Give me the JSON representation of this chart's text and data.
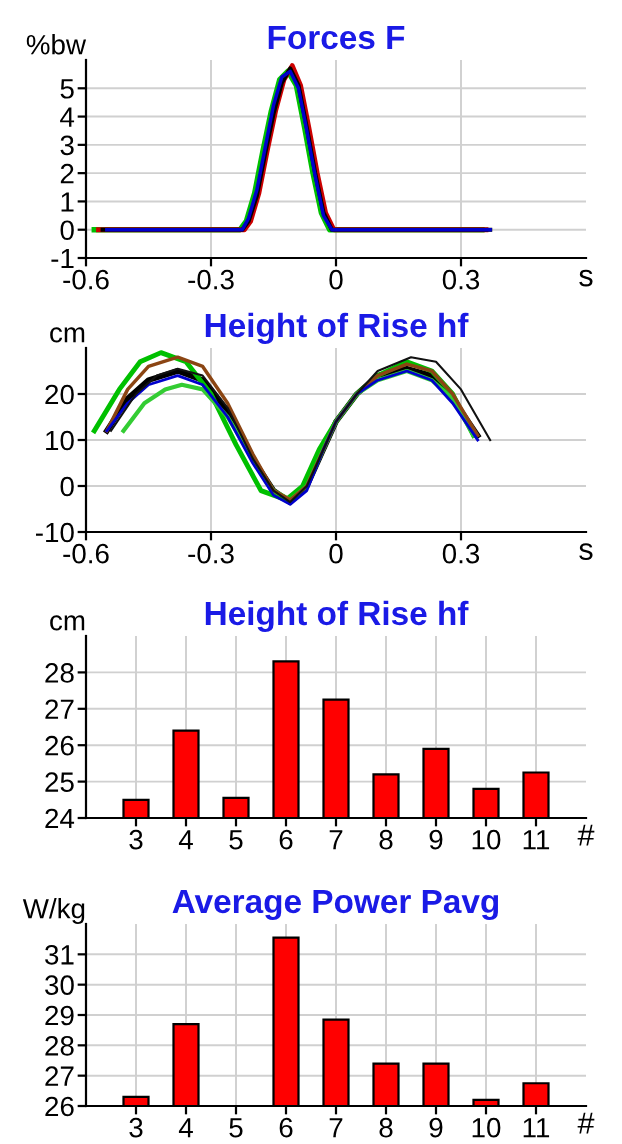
{
  "chart_data": [
    {
      "type": "line",
      "title": "Forces F",
      "ylabel": "%bw",
      "xlabel": "s",
      "xlim": [
        -0.6,
        0.6
      ],
      "xticks": [
        -0.6,
        -0.3,
        0,
        0.3
      ],
      "ylim": [
        -1,
        6
      ],
      "yticks": [
        -1,
        0,
        1,
        2,
        3,
        4,
        5
      ],
      "grid": true,
      "marker": "none",
      "line_style": "solid",
      "series": [
        {
          "color": "#00c000",
          "x": [
            -0.58,
            -0.3,
            -0.23,
            -0.215,
            -0.195,
            -0.175,
            -0.155,
            -0.135,
            -0.115,
            -0.095,
            -0.075,
            -0.055,
            -0.035,
            -0.015,
            0.1,
            0.35
          ],
          "values": [
            0,
            0,
            0,
            0.3,
            1.3,
            2.8,
            4.2,
            5.3,
            5.6,
            5.1,
            3.6,
            2.0,
            0.6,
            0,
            0,
            0
          ]
        },
        {
          "color": "#cc0000",
          "x": [
            -0.57,
            -0.3,
            -0.22,
            -0.205,
            -0.185,
            -0.165,
            -0.145,
            -0.125,
            -0.105,
            -0.085,
            -0.065,
            -0.045,
            -0.025,
            -0.005,
            0.1,
            0.36
          ],
          "values": [
            0,
            0,
            0,
            0.3,
            1.3,
            2.8,
            4.2,
            5.3,
            5.8,
            5.1,
            3.6,
            2.0,
            0.6,
            0,
            0,
            0
          ]
        },
        {
          "color": "#000000",
          "x": [
            -0.56,
            -0.3,
            -0.225,
            -0.21,
            -0.19,
            -0.17,
            -0.15,
            -0.13,
            -0.11,
            -0.09,
            -0.07,
            -0.05,
            -0.03,
            -0.01,
            0.1,
            0.37
          ],
          "values": [
            0,
            0,
            0,
            0.3,
            1.2,
            2.7,
            4.1,
            5.2,
            5.7,
            5.1,
            3.6,
            2.0,
            0.6,
            0,
            0,
            0
          ]
        },
        {
          "color": "#0000cc",
          "x": [
            -0.55,
            -0.3,
            -0.225,
            -0.21,
            -0.19,
            -0.17,
            -0.15,
            -0.13,
            -0.11,
            -0.09,
            -0.07,
            -0.05,
            -0.03,
            -0.01,
            0.1,
            0.37
          ],
          "values": [
            0,
            0,
            0,
            0.4,
            1.4,
            2.9,
            4.4,
            5.4,
            5.6,
            5.0,
            3.5,
            1.9,
            0.5,
            0,
            0,
            0
          ]
        }
      ]
    },
    {
      "type": "line",
      "title": "Height of Rise hf",
      "ylabel": "cm",
      "xlabel": "s",
      "xlim": [
        -0.6,
        0.6
      ],
      "xticks": [
        -0.6,
        -0.3,
        0,
        0.3
      ],
      "ylim": [
        -10,
        30
      ],
      "yticks": [
        -10,
        0,
        10,
        20
      ],
      "grid": true,
      "marker": "none",
      "line_style": "solid",
      "series": [
        {
          "color": "#000000",
          "x": [
            -0.55,
            -0.5,
            -0.45,
            -0.38,
            -0.32,
            -0.26,
            -0.2,
            -0.15,
            -0.11,
            -0.07,
            -0.03,
            0,
            0.05,
            0.1,
            0.17,
            0.23,
            0.28,
            0.34
          ],
          "values": [
            12,
            19,
            23,
            25,
            23,
            16,
            6,
            -1,
            -3.5,
            0,
            8,
            14,
            20,
            24,
            25.5,
            24,
            19,
            11
          ]
        },
        {
          "color": "#00c000",
          "x": [
            -0.58,
            -0.52,
            -0.47,
            -0.42,
            -0.36,
            -0.3,
            -0.24,
            -0.18,
            -0.12,
            -0.08,
            -0.04,
            0,
            0.05,
            0.1,
            0.17,
            0.23,
            0.28,
            0.33
          ],
          "values": [
            12,
            21,
            27,
            29,
            27,
            20,
            9,
            -1,
            -3,
            0,
            8,
            14,
            20,
            24,
            27,
            25,
            20,
            11
          ]
        },
        {
          "color": "#33cc33",
          "x": [
            -0.51,
            -0.46,
            -0.41,
            -0.37,
            -0.32,
            -0.26,
            -0.2,
            -0.15,
            -0.11,
            -0.07,
            -0.03,
            0,
            0.05,
            0.1,
            0.17,
            0.23,
            0.28,
            0.33
          ],
          "values": [
            12,
            18,
            21,
            22,
            21,
            15,
            6,
            -1,
            -3,
            0,
            8,
            14,
            20,
            23,
            25,
            23,
            19,
            11
          ]
        },
        {
          "color": "#8b4513",
          "x": [
            -0.55,
            -0.5,
            -0.45,
            -0.38,
            -0.32,
            -0.26,
            -0.2,
            -0.15,
            -0.11,
            -0.07,
            -0.03,
            0,
            0.05,
            0.1,
            0.17,
            0.23,
            0.28,
            0.34
          ],
          "values": [
            12,
            21,
            26,
            28,
            26,
            18,
            7,
            -1,
            -3,
            0,
            8,
            14,
            20,
            24,
            26.5,
            25,
            20,
            11
          ]
        },
        {
          "color": "#0000cc",
          "x": [
            -0.55,
            -0.5,
            -0.45,
            -0.38,
            -0.32,
            -0.26,
            -0.2,
            -0.15,
            -0.11,
            -0.07,
            -0.03,
            0,
            0.05,
            0.1,
            0.17,
            0.23,
            0.28,
            0.34
          ],
          "values": [
            12,
            18,
            22,
            24,
            22,
            15,
            5,
            -2,
            -4,
            -1,
            8,
            14,
            20,
            23,
            25,
            23,
            18,
            10
          ]
        },
        {
          "color": "#111111",
          "x": [
            -0.54,
            -0.48,
            -0.43,
            -0.38,
            -0.32,
            -0.26,
            -0.2,
            -0.15,
            -0.11,
            -0.07,
            -0.03,
            0,
            0.05,
            0.1,
            0.18,
            0.24,
            0.3,
            0.37
          ],
          "values": [
            12,
            20,
            24,
            25.5,
            24,
            17,
            6,
            -1,
            -3.5,
            0,
            8,
            14,
            20,
            25,
            28,
            27,
            21,
            10
          ]
        }
      ]
    },
    {
      "type": "bar",
      "title": "Height of Rise hf",
      "ylabel": "cm",
      "xlabel": "#",
      "x": [
        3,
        4,
        5,
        6,
        7,
        8,
        9,
        10,
        11
      ],
      "values": [
        24.5,
        26.4,
        24.55,
        28.3,
        27.25,
        25.2,
        25.9,
        24.8,
        25.25
      ],
      "color": "#ff0000",
      "xlim": [
        2,
        12
      ],
      "xticks": [
        3,
        4,
        5,
        6,
        7,
        8,
        9,
        10,
        11
      ],
      "ylim": [
        24,
        29
      ],
      "yticks": [
        24,
        25,
        26,
        27,
        28
      ],
      "grid": true
    },
    {
      "type": "bar",
      "title": "Average Power Pavg",
      "ylabel": "W/kg",
      "xlabel": "#",
      "x": [
        3,
        4,
        5,
        6,
        7,
        8,
        9,
        10,
        11
      ],
      "values": [
        26.3,
        28.7,
        null,
        31.55,
        28.85,
        27.4,
        27.4,
        26.2,
        26.75
      ],
      "color": "#ff0000",
      "xlim": [
        2,
        12
      ],
      "xticks": [
        3,
        4,
        5,
        6,
        7,
        8,
        9,
        10,
        11
      ],
      "ylim": [
        26,
        32
      ],
      "yticks": [
        26,
        27,
        28,
        29,
        30,
        31
      ],
      "grid": true
    }
  ]
}
